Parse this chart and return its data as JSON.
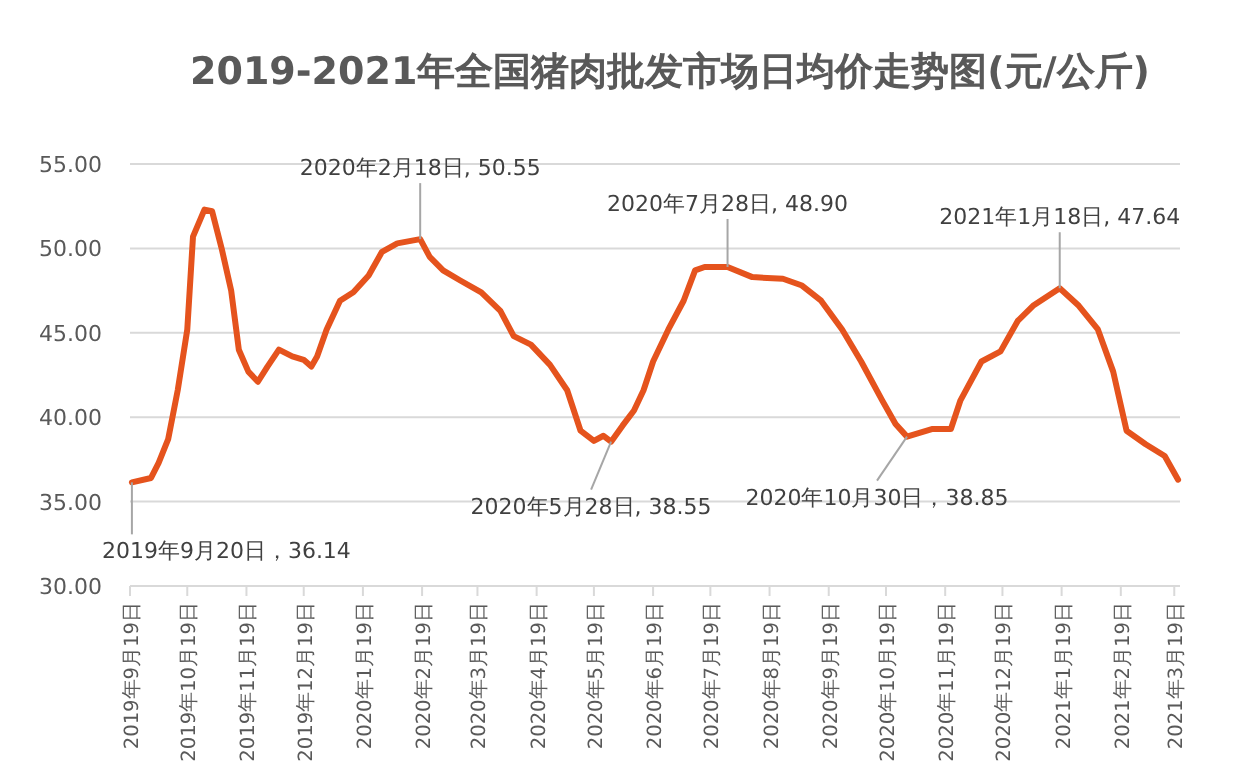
{
  "chart_data": {
    "type": "line",
    "title": "2019-2021年全国猪肉批发市场日均价走势图(元/公斤)",
    "color": "#e5531d",
    "grid": "y",
    "marker": "none",
    "line_style": "solid",
    "x": [
      "2019-09-20",
      "2019-09-30",
      "2019-10-04",
      "2019-10-09",
      "2019-10-14",
      "2019-10-19",
      "2019-10-22",
      "2019-10-28",
      "2019-11-01",
      "2019-11-06",
      "2019-11-11",
      "2019-11-15",
      "2019-11-20",
      "2019-11-25",
      "2019-11-30",
      "2019-12-06",
      "2019-12-13",
      "2019-12-19",
      "2019-12-23",
      "2019-12-26",
      "2019-12-31",
      "2020-01-07",
      "2020-01-14",
      "2020-01-22",
      "2020-01-29",
      "2020-02-06",
      "2020-02-18",
      "2020-02-23",
      "2020-03-01",
      "2020-03-10",
      "2020-03-21",
      "2020-03-31",
      "2020-04-07",
      "2020-04-16",
      "2020-04-26",
      "2020-05-05",
      "2020-05-12",
      "2020-05-19",
      "2020-05-24",
      "2020-05-28",
      "2020-06-03",
      "2020-06-09",
      "2020-06-14",
      "2020-06-19",
      "2020-06-27",
      "2020-07-05",
      "2020-07-11",
      "2020-07-16",
      "2020-07-28",
      "2020-08-10",
      "2020-08-26",
      "2020-09-05",
      "2020-09-15",
      "2020-09-26",
      "2020-10-06",
      "2020-10-17",
      "2020-10-24",
      "2020-10-30",
      "2020-11-12",
      "2020-11-22",
      "2020-11-27",
      "2020-12-08",
      "2020-12-18",
      "2020-12-27",
      "2021-01-04",
      "2021-01-18",
      "2021-01-28",
      "2021-02-07",
      "2021-02-15",
      "2021-02-22",
      "2021-03-04",
      "2021-03-14",
      "2021-03-21"
    ],
    "values": [
      36.14,
      36.4,
      37.3,
      38.7,
      41.6,
      45.2,
      50.7,
      52.3,
      52.2,
      50.0,
      47.5,
      44.0,
      42.7,
      42.1,
      43.0,
      44.0,
      43.6,
      43.4,
      43.0,
      43.6,
      45.2,
      46.9,
      47.4,
      48.4,
      49.8,
      50.3,
      50.55,
      49.5,
      48.7,
      48.1,
      47.4,
      46.3,
      44.8,
      44.3,
      43.1,
      41.6,
      39.2,
      38.6,
      38.9,
      38.55,
      39.5,
      40.4,
      41.6,
      43.3,
      45.2,
      46.9,
      48.7,
      48.9,
      48.9,
      48.3,
      48.2,
      47.8,
      46.9,
      45.2,
      43.3,
      41.0,
      39.6,
      38.85,
      39.3,
      39.3,
      41.0,
      43.3,
      43.9,
      45.7,
      46.6,
      47.64,
      46.6,
      45.2,
      42.7,
      39.2,
      38.4,
      37.7,
      36.3
    ],
    "xlim": [
      "2019-09-19",
      "2021-03-22"
    ],
    "xticks": [
      {
        "value": "2019-09-19",
        "label": "2019年9月19日"
      },
      {
        "value": "2019-10-19",
        "label": "2019年10月19日"
      },
      {
        "value": "2019-11-19",
        "label": "2019年11月19日"
      },
      {
        "value": "2019-12-19",
        "label": "2019年12月19日"
      },
      {
        "value": "2020-01-19",
        "label": "2020年1月19日"
      },
      {
        "value": "2020-02-19",
        "label": "2020年2月19日"
      },
      {
        "value": "2020-03-19",
        "label": "2020年3月19日"
      },
      {
        "value": "2020-04-19",
        "label": "2020年4月19日"
      },
      {
        "value": "2020-05-19",
        "label": "2020年5月19日"
      },
      {
        "value": "2020-06-19",
        "label": "2020年6月19日"
      },
      {
        "value": "2020-07-19",
        "label": "2020年7月19日"
      },
      {
        "value": "2020-08-19",
        "label": "2020年8月19日"
      },
      {
        "value": "2020-09-19",
        "label": "2020年9月19日"
      },
      {
        "value": "2020-10-19",
        "label": "2020年10月19日"
      },
      {
        "value": "2020-11-19",
        "label": "2020年11月19日"
      },
      {
        "value": "2020-12-19",
        "label": "2020年12月19日"
      },
      {
        "value": "2021-01-19",
        "label": "2021年1月19日"
      },
      {
        "value": "2021-02-19",
        "label": "2021年2月19日"
      },
      {
        "value": "2021-03-19",
        "label": "2021年3月19日"
      }
    ],
    "ylim": [
      30,
      55
    ],
    "yticks": [
      {
        "value": 30,
        "label": "30.00"
      },
      {
        "value": 35,
        "label": "35.00"
      },
      {
        "value": 40,
        "label": "40.00"
      },
      {
        "value": 45,
        "label": "45.00"
      },
      {
        "value": 50,
        "label": "50.00"
      },
      {
        "value": 55,
        "label": "55.00"
      }
    ],
    "annotations": [
      {
        "text": "2019年9月20日，36.14",
        "x": "2019-09-20",
        "y": 36.14
      },
      {
        "text": "2020年2月18日, 50.55",
        "x": "2020-02-18",
        "y": 50.55
      },
      {
        "text": "2020年5月28日, 38.55",
        "x": "2020-05-28",
        "y": 38.55
      },
      {
        "text": "2020年7月28日, 48.90",
        "x": "2020-07-28",
        "y": 48.9
      },
      {
        "text": "2020年10月30日，38.85",
        "x": "2020-10-30",
        "y": 38.85
      },
      {
        "text": "2021年1月18日, 47.64",
        "x": "2021-01-18",
        "y": 47.64
      }
    ]
  }
}
